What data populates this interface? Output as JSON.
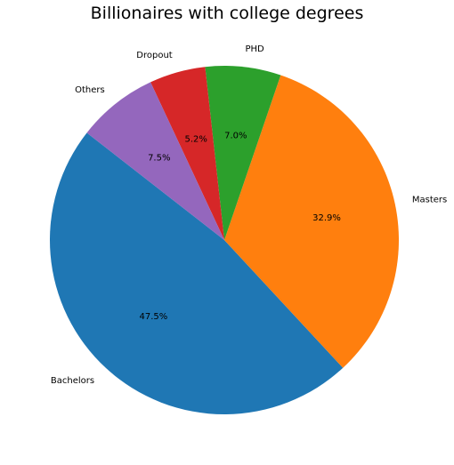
{
  "chart_data": {
    "type": "pie",
    "title": "Billionaires with college degrees",
    "start_angle_deg": 142,
    "direction": "counterclockwise",
    "slices": [
      {
        "label": "Bachelors",
        "value": 47.5,
        "pct_label": "47.5%",
        "color": "#1f77b4"
      },
      {
        "label": "Masters",
        "value": 32.9,
        "pct_label": "32.9%",
        "color": "#ff7f0e"
      },
      {
        "label": "PHD",
        "value": 7.0,
        "pct_label": "7.0%",
        "color": "#2ca02c"
      },
      {
        "label": "Dropout",
        "value": 5.2,
        "pct_label": "5.2%",
        "color": "#d62728"
      },
      {
        "label": "Others",
        "value": 7.5,
        "pct_label": "7.5%",
        "color": "#9467bd"
      }
    ]
  }
}
